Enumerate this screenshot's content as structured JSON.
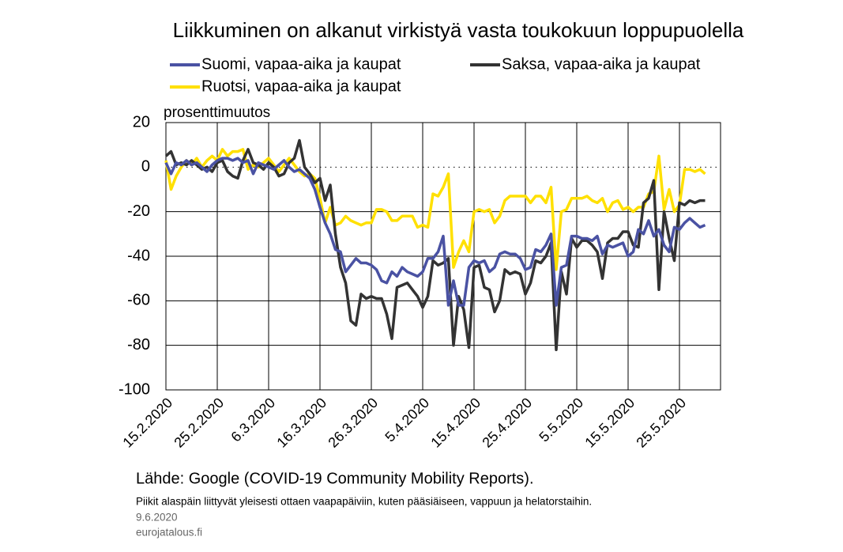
{
  "chart_data": {
    "type": "line",
    "title": "Liikkuminen on alkanut virkistyä vasta toukokuun loppupuolella",
    "y_axis_label": "prosenttimuutos",
    "source": "Lähde: Google (COVID-19 Community  Mobility  Reports).",
    "note": "Piikit alaspäin liittyvät yleisesti ottaen vaapapäiviin, kuten pääsiäiseen, vappuun ja helatorstaihin.",
    "date": "9.6.2020",
    "site": "eurojatalous.fi",
    "ylim": [
      -100,
      20
    ],
    "yticks": [
      20,
      0,
      -20,
      -40,
      -60,
      -80,
      -100
    ],
    "grid": true,
    "categories": [
      "15.2.2020",
      null,
      null,
      null,
      null,
      null,
      null,
      null,
      null,
      null,
      "25.2.2020",
      null,
      null,
      null,
      null,
      null,
      null,
      null,
      null,
      null,
      "6.3.2020",
      null,
      null,
      null,
      null,
      null,
      null,
      null,
      null,
      null,
      "16.3.2020",
      null,
      null,
      null,
      null,
      null,
      null,
      null,
      null,
      null,
      "26.3.2020",
      null,
      null,
      null,
      null,
      null,
      null,
      null,
      null,
      null,
      "5.4.2020",
      null,
      null,
      null,
      null,
      null,
      null,
      null,
      null,
      null,
      "15.4.2020",
      null,
      null,
      null,
      null,
      null,
      null,
      null,
      null,
      null,
      "25.4.2020",
      null,
      null,
      null,
      null,
      null,
      null,
      null,
      null,
      null,
      "5.5.2020",
      null,
      null,
      null,
      null,
      null,
      null,
      null,
      null,
      null,
      "15.5.2020",
      null,
      null,
      null,
      null,
      null,
      null,
      null,
      null,
      null,
      "25.5.2020",
      null,
      null,
      null,
      null,
      null
    ],
    "series": [
      {
        "name": "Suomi, vapaa-aika ja kaupat",
        "color": "#4a52a3",
        "values": [
          2,
          -3,
          2,
          1,
          3,
          1,
          2,
          0,
          -2,
          1,
          3,
          4,
          4,
          3,
          4,
          2,
          3,
          -3,
          2,
          1,
          0,
          -1,
          1,
          3,
          0,
          -2,
          -1,
          -3,
          -5,
          -10,
          -18,
          -25,
          -30,
          -37,
          -38,
          -47,
          -44,
          -41,
          -43,
          -43,
          -44,
          -46,
          -51,
          -52,
          -47,
          -49,
          -45,
          -47,
          -48,
          -49,
          -47,
          -41,
          -41,
          -38,
          -31,
          -62,
          -51,
          -62,
          -62,
          -45,
          -42,
          -43,
          -42,
          -47,
          -45,
          -39,
          -38,
          -39,
          -39,
          -41,
          -46,
          -45,
          -37,
          -38,
          -35,
          -30,
          -62,
          -45,
          -44,
          -31,
          -31,
          -32,
          -32,
          -33,
          -31,
          -39,
          -35,
          -36,
          -35,
          -34,
          -40,
          -38,
          -28,
          -30,
          -24,
          -31,
          -28,
          -35,
          -38,
          -27,
          -28,
          -25,
          -23,
          -25,
          -27,
          -26
        ]
      },
      {
        "name": "Saksa, vapaa-aika ja kaupat",
        "color": "#333333",
        "values": [
          5,
          7,
          1,
          2,
          1,
          3,
          1,
          -1,
          0,
          -2,
          2,
          3,
          -2,
          -4,
          -5,
          3,
          8,
          2,
          1,
          -1,
          2,
          0,
          -4,
          -3,
          2,
          4,
          12,
          0,
          -3,
          -7,
          -5,
          -15,
          -8,
          -30,
          -45,
          -52,
          -69,
          -71,
          -57,
          -59,
          -58,
          -59,
          -59,
          -66,
          -77,
          -54,
          -53,
          -52,
          -55,
          -58,
          -63,
          -58,
          -42,
          -44,
          -43,
          -41,
          -80,
          -58,
          -64,
          -81,
          -45,
          -44,
          -54,
          -55,
          -65,
          -60,
          -46,
          -48,
          -47,
          -48,
          -57,
          -52,
          -42,
          -43,
          -40,
          -34,
          -82,
          -47,
          -57,
          -32,
          -36,
          -33,
          -33,
          -35,
          -38,
          -50,
          -34,
          -32,
          -32,
          -29,
          -29,
          -35,
          -36,
          -16,
          -14,
          -6,
          -55,
          -20,
          -32,
          -42,
          -16,
          -17,
          -15,
          -16,
          -15,
          -15
        ]
      },
      {
        "name": "Ruotsi, vapaa-aika ja kaupat",
        "color": "#ffe000",
        "values": [
          3,
          -10,
          -4,
          0,
          3,
          1,
          4,
          0,
          3,
          5,
          3,
          8,
          5,
          7,
          7,
          8,
          -1,
          1,
          0,
          2,
          4,
          1,
          -2,
          1,
          4,
          1,
          -2,
          -4,
          -3,
          -5,
          -14,
          -25,
          -18,
          -26,
          -25,
          -22,
          -24,
          -25,
          -26,
          -25,
          -25,
          -19,
          -19,
          -20,
          -24,
          -24,
          -22,
          -22,
          -22,
          -27,
          -26,
          -27,
          -12,
          -13,
          -9,
          -3,
          -45,
          -38,
          -33,
          -38,
          -20,
          -19,
          -20,
          -19,
          -25,
          -22,
          -15,
          -13,
          -13,
          -13,
          -13,
          -16,
          -13,
          -13,
          -16,
          -9,
          -46,
          -20,
          -19,
          -14,
          -14,
          -14,
          -13,
          -15,
          -16,
          -14,
          -20,
          -16,
          -15,
          -19,
          -18,
          -20,
          -18,
          -18,
          -12,
          -11,
          5,
          -19,
          -10,
          -20,
          -17,
          -1,
          -1,
          -2,
          -1,
          -3
        ]
      }
    ]
  }
}
